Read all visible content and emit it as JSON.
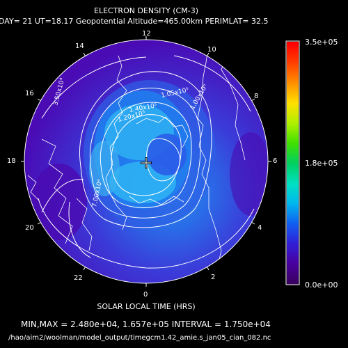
{
  "title": "ELECTRON DENSITY (CM-3)",
  "subtitle": "DAY= 21 UT=18.17 Geopotential Altitude=465.00km PERIMLAT= 32.5",
  "xlabel": "SOLAR LOCAL TIME (HRS)",
  "stats": "MIN,MAX =  2.480e+04, 1.657e+05 INTERVAL =  1.750e+04",
  "filepath": "/hao/aim2/woolman/model_output/timegcm1.42_amie.s_jan05_cian_082.nc",
  "hour_labels": [
    {
      "label": "12"
    },
    {
      "label": "10"
    },
    {
      "label": "8"
    },
    {
      "label": "6"
    },
    {
      "label": "4"
    },
    {
      "label": "2"
    },
    {
      "label": "0"
    },
    {
      "label": "22"
    },
    {
      "label": "20"
    },
    {
      "label": "18"
    },
    {
      "label": "16"
    },
    {
      "label": "14"
    }
  ],
  "contour_labels": [
    "3.50x10⁴",
    "1.05x10⁵",
    "1.40x10⁵",
    "1.00x10⁵",
    "1.20x10⁵",
    "7.00x10⁴"
  ],
  "colorbar": {
    "max_label": "3.5e+05",
    "mid_label": "1.8e+05",
    "min_label": "0.0e+00",
    "colors": [
      "#3a0060",
      "#4800a0",
      "#3020d8",
      "#1060f0",
      "#00b8f0",
      "#00e0c0",
      "#00d060",
      "#40e000",
      "#b0f000",
      "#ffe000",
      "#ff9000",
      "#ff4000",
      "#ff0000"
    ]
  },
  "colors": {
    "background": "#000000",
    "low_density": "#4a0ab4",
    "mid_density": "#2a58e8",
    "high_density": "#30c8f0",
    "contour": "#ffffff"
  }
}
